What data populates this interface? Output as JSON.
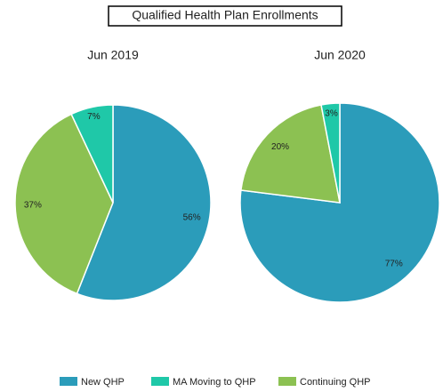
{
  "title": "Qualified Health Plan Enrollments",
  "chart_data": [
    {
      "type": "pie",
      "title": "Jun 2019",
      "categories": [
        "New QHP",
        "Continuing QHP",
        "MA Moving to QHP"
      ],
      "values": [
        56,
        37,
        7
      ],
      "value_labels": [
        "56%",
        "37%",
        "7%"
      ],
      "colors": [
        "#2b9cba",
        "#8cc152",
        "#1fc8a8"
      ]
    },
    {
      "type": "pie",
      "title": "Jun 2020",
      "categories": [
        "New QHP",
        "Continuing QHP",
        "MA Moving to QHP"
      ],
      "values": [
        77,
        20,
        3
      ],
      "value_labels": [
        "77%",
        "20%",
        "3%"
      ],
      "colors": [
        "#2b9cba",
        "#8cc152",
        "#1fc8a8"
      ]
    }
  ]
}
